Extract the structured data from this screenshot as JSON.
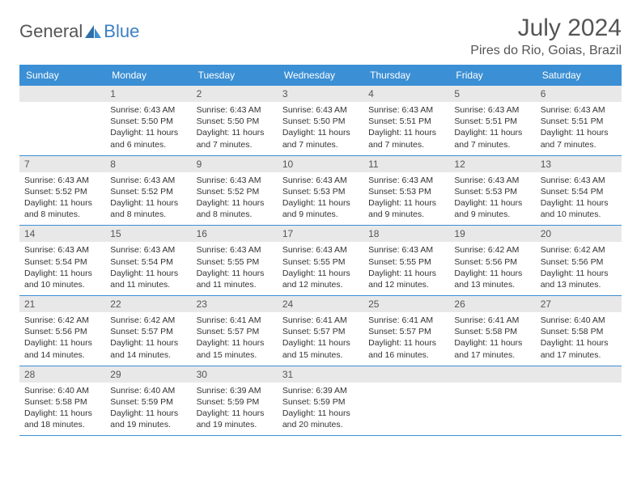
{
  "brand": {
    "part1": "General",
    "part2": "Blue"
  },
  "title": "July 2024",
  "location": "Pires do Rio, Goias, Brazil",
  "colors": {
    "header_bg": "#3b8fd4",
    "daynum_bg": "#e8e8e8",
    "text": "#333333",
    "title_text": "#555555",
    "border": "#3b8fd4"
  },
  "weekdays": [
    "Sunday",
    "Monday",
    "Tuesday",
    "Wednesday",
    "Thursday",
    "Friday",
    "Saturday"
  ],
  "weeks": [
    [
      null,
      {
        "n": "1",
        "sr": "6:43 AM",
        "ss": "5:50 PM",
        "dl": "11 hours and 6 minutes."
      },
      {
        "n": "2",
        "sr": "6:43 AM",
        "ss": "5:50 PM",
        "dl": "11 hours and 7 minutes."
      },
      {
        "n": "3",
        "sr": "6:43 AM",
        "ss": "5:50 PM",
        "dl": "11 hours and 7 minutes."
      },
      {
        "n": "4",
        "sr": "6:43 AM",
        "ss": "5:51 PM",
        "dl": "11 hours and 7 minutes."
      },
      {
        "n": "5",
        "sr": "6:43 AM",
        "ss": "5:51 PM",
        "dl": "11 hours and 7 minutes."
      },
      {
        "n": "6",
        "sr": "6:43 AM",
        "ss": "5:51 PM",
        "dl": "11 hours and 7 minutes."
      }
    ],
    [
      {
        "n": "7",
        "sr": "6:43 AM",
        "ss": "5:52 PM",
        "dl": "11 hours and 8 minutes."
      },
      {
        "n": "8",
        "sr": "6:43 AM",
        "ss": "5:52 PM",
        "dl": "11 hours and 8 minutes."
      },
      {
        "n": "9",
        "sr": "6:43 AM",
        "ss": "5:52 PM",
        "dl": "11 hours and 8 minutes."
      },
      {
        "n": "10",
        "sr": "6:43 AM",
        "ss": "5:53 PM",
        "dl": "11 hours and 9 minutes."
      },
      {
        "n": "11",
        "sr": "6:43 AM",
        "ss": "5:53 PM",
        "dl": "11 hours and 9 minutes."
      },
      {
        "n": "12",
        "sr": "6:43 AM",
        "ss": "5:53 PM",
        "dl": "11 hours and 9 minutes."
      },
      {
        "n": "13",
        "sr": "6:43 AM",
        "ss": "5:54 PM",
        "dl": "11 hours and 10 minutes."
      }
    ],
    [
      {
        "n": "14",
        "sr": "6:43 AM",
        "ss": "5:54 PM",
        "dl": "11 hours and 10 minutes."
      },
      {
        "n": "15",
        "sr": "6:43 AM",
        "ss": "5:54 PM",
        "dl": "11 hours and 11 minutes."
      },
      {
        "n": "16",
        "sr": "6:43 AM",
        "ss": "5:55 PM",
        "dl": "11 hours and 11 minutes."
      },
      {
        "n": "17",
        "sr": "6:43 AM",
        "ss": "5:55 PM",
        "dl": "11 hours and 12 minutes."
      },
      {
        "n": "18",
        "sr": "6:43 AM",
        "ss": "5:55 PM",
        "dl": "11 hours and 12 minutes."
      },
      {
        "n": "19",
        "sr": "6:42 AM",
        "ss": "5:56 PM",
        "dl": "11 hours and 13 minutes."
      },
      {
        "n": "20",
        "sr": "6:42 AM",
        "ss": "5:56 PM",
        "dl": "11 hours and 13 minutes."
      }
    ],
    [
      {
        "n": "21",
        "sr": "6:42 AM",
        "ss": "5:56 PM",
        "dl": "11 hours and 14 minutes."
      },
      {
        "n": "22",
        "sr": "6:42 AM",
        "ss": "5:57 PM",
        "dl": "11 hours and 14 minutes."
      },
      {
        "n": "23",
        "sr": "6:41 AM",
        "ss": "5:57 PM",
        "dl": "11 hours and 15 minutes."
      },
      {
        "n": "24",
        "sr": "6:41 AM",
        "ss": "5:57 PM",
        "dl": "11 hours and 15 minutes."
      },
      {
        "n": "25",
        "sr": "6:41 AM",
        "ss": "5:57 PM",
        "dl": "11 hours and 16 minutes."
      },
      {
        "n": "26",
        "sr": "6:41 AM",
        "ss": "5:58 PM",
        "dl": "11 hours and 17 minutes."
      },
      {
        "n": "27",
        "sr": "6:40 AM",
        "ss": "5:58 PM",
        "dl": "11 hours and 17 minutes."
      }
    ],
    [
      {
        "n": "28",
        "sr": "6:40 AM",
        "ss": "5:58 PM",
        "dl": "11 hours and 18 minutes."
      },
      {
        "n": "29",
        "sr": "6:40 AM",
        "ss": "5:59 PM",
        "dl": "11 hours and 19 minutes."
      },
      {
        "n": "30",
        "sr": "6:39 AM",
        "ss": "5:59 PM",
        "dl": "11 hours and 19 minutes."
      },
      {
        "n": "31",
        "sr": "6:39 AM",
        "ss": "5:59 PM",
        "dl": "11 hours and 20 minutes."
      },
      null,
      null,
      null
    ]
  ],
  "labels": {
    "sunrise": "Sunrise:",
    "sunset": "Sunset:",
    "daylight": "Daylight:"
  }
}
